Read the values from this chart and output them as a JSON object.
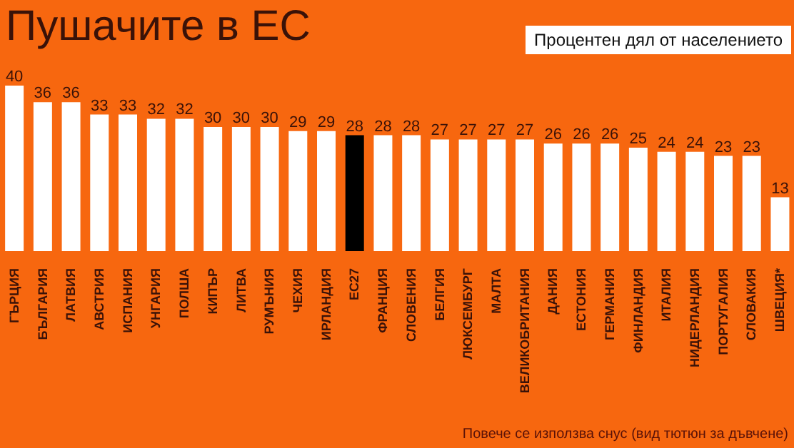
{
  "chart_data": {
    "type": "bar",
    "title": "Пушачите в ЕС",
    "subtitle": "Процентен дял от населението",
    "categories": [
      "ГЪРЦИЯ",
      "БЪЛГАРИЯ",
      "ЛАТВИЯ",
      "АВСТРИЯ",
      "ИСПАНИЯ",
      "УНГАРИЯ",
      "ПОЛША",
      "КИПЪР",
      "ЛИТВА",
      "РУМЪНИЯ",
      "ЧЕХИЯ",
      "ИРЛАНДИЯ",
      "ЕС27",
      "ФРАНЦИЯ",
      "СЛОВЕНИЯ",
      "БЕЛГИЯ",
      "ЛЮКСЕМБУРГ",
      "МАЛТА",
      "ВЕЛИКОБРИТАНИЯ",
      "ДАНИЯ",
      "ЕСТОНИЯ",
      "ГЕРМАНИЯ",
      "ФИНЛАНДИЯ",
      "ИТАЛИЯ",
      "НИДЕРЛАНДИЯ",
      "ПОРТУГАЛИЯ",
      "СЛОВАКИЯ",
      "ШВЕЦИЯ*"
    ],
    "values": [
      40,
      36,
      36,
      33,
      33,
      32,
      32,
      30,
      30,
      30,
      29,
      29,
      28,
      28,
      28,
      27,
      27,
      27,
      27,
      26,
      26,
      26,
      25,
      24,
      24,
      23,
      23,
      13
    ],
    "colors": [
      "#ffffff",
      "#ffffff",
      "#ffffff",
      "#ffffff",
      "#ffffff",
      "#ffffff",
      "#ffffff",
      "#ffffff",
      "#ffffff",
      "#ffffff",
      "#ffffff",
      "#ffffff",
      "#000000",
      "#ffffff",
      "#ffffff",
      "#ffffff",
      "#ffffff",
      "#ffffff",
      "#ffffff",
      "#ffffff",
      "#ffffff",
      "#ffffff",
      "#ffffff",
      "#ffffff",
      "#ffffff",
      "#ffffff",
      "#ffffff",
      "#ffffff"
    ],
    "data_labels": true,
    "annotations": [
      "Повече се използва снус (вид тютюн за дъвчене)"
    ]
  }
}
